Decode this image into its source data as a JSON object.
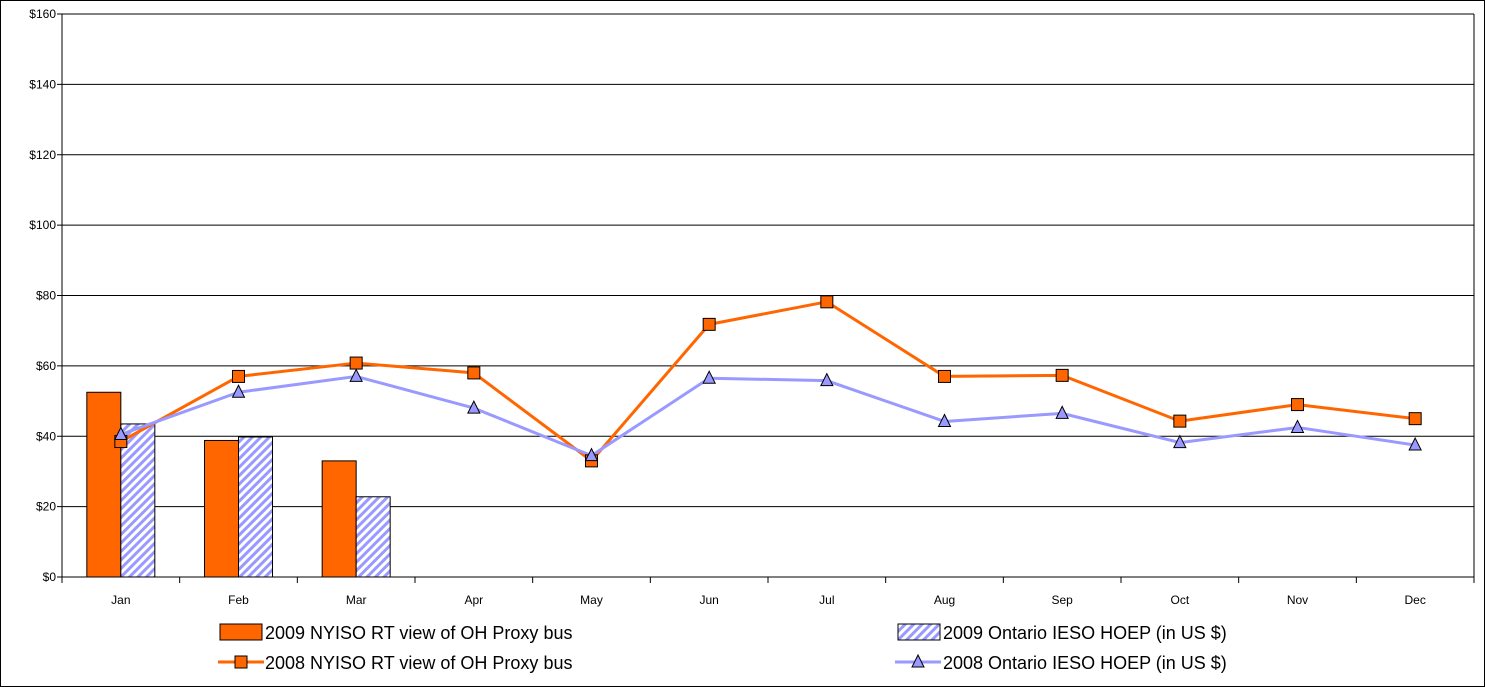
{
  "colors": {
    "nyiso": "#ff6600",
    "ontario": "#9999ff",
    "border": "#000000"
  },
  "chart_data": {
    "type": "bar",
    "categories": [
      "Jan",
      "Feb",
      "Mar",
      "Apr",
      "May",
      "Jun",
      "Jul",
      "Aug",
      "Sep",
      "Oct",
      "Nov",
      "Dec"
    ],
    "ylim": [
      0,
      160
    ],
    "yticks": [
      0,
      20,
      40,
      60,
      80,
      100,
      120,
      140,
      160
    ],
    "ytick_labels": [
      "$0",
      "$20",
      "$40",
      "$60",
      "$80",
      "$100",
      "$120",
      "$140",
      "$160"
    ],
    "grid": "horizontal",
    "legend_position": "bottom",
    "series": [
      {
        "name": "2009 NYISO RT view of OH Proxy bus",
        "kind": "bar",
        "values": [
          52.5,
          38.8,
          33.0,
          null,
          null,
          null,
          null,
          null,
          null,
          null,
          null,
          null
        ]
      },
      {
        "name": "2009 Ontario IESO HOEP (in US $)",
        "kind": "bar",
        "values": [
          43.5,
          39.8,
          22.8,
          null,
          null,
          null,
          null,
          null,
          null,
          null,
          null,
          null
        ]
      },
      {
        "name": "2008 NYISO RT view of OH Proxy bus",
        "kind": "line",
        "marker": "square",
        "values": [
          38.5,
          57.0,
          60.8,
          58.0,
          33.0,
          71.8,
          78.2,
          57.0,
          57.3,
          44.3,
          49.0,
          45.0
        ]
      },
      {
        "name": "2008 Ontario IESO HOEP (in US $)",
        "kind": "line",
        "marker": "triangle",
        "values": [
          40.5,
          52.5,
          57.0,
          48.0,
          34.5,
          56.5,
          55.8,
          44.2,
          46.5,
          38.2,
          42.5,
          37.5
        ]
      }
    ]
  }
}
